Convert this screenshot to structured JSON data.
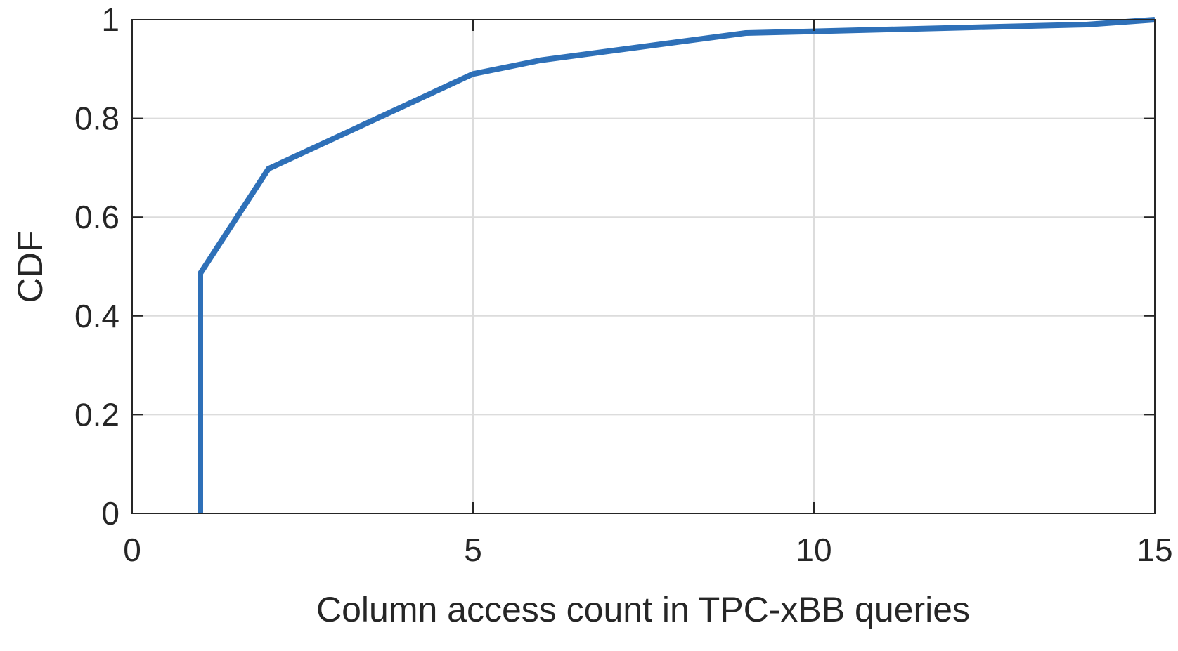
{
  "chart_data": {
    "type": "line",
    "title": "",
    "xlabel": "Column access count in TPC-xBB queries",
    "ylabel": "CDF",
    "xlim": [
      0,
      15
    ],
    "ylim": [
      0,
      1
    ],
    "xticks": [
      0,
      5,
      10,
      15
    ],
    "xtick_labels": [
      "0",
      "5",
      "10",
      "15"
    ],
    "yticks": [
      0,
      0.2,
      0.4,
      0.6,
      0.8,
      1
    ],
    "ytick_labels": [
      "0",
      "0.2",
      "0.4",
      "0.6",
      "0.8",
      "1"
    ],
    "grid": true,
    "legend": "none",
    "series": [
      {
        "color": "#2e70b8",
        "x": [
          1,
          1,
          2,
          5,
          6,
          9,
          14,
          15
        ],
        "y": [
          0,
          0.486,
          0.698,
          0.89,
          0.918,
          0.973,
          0.99,
          1.0
        ]
      }
    ]
  }
}
